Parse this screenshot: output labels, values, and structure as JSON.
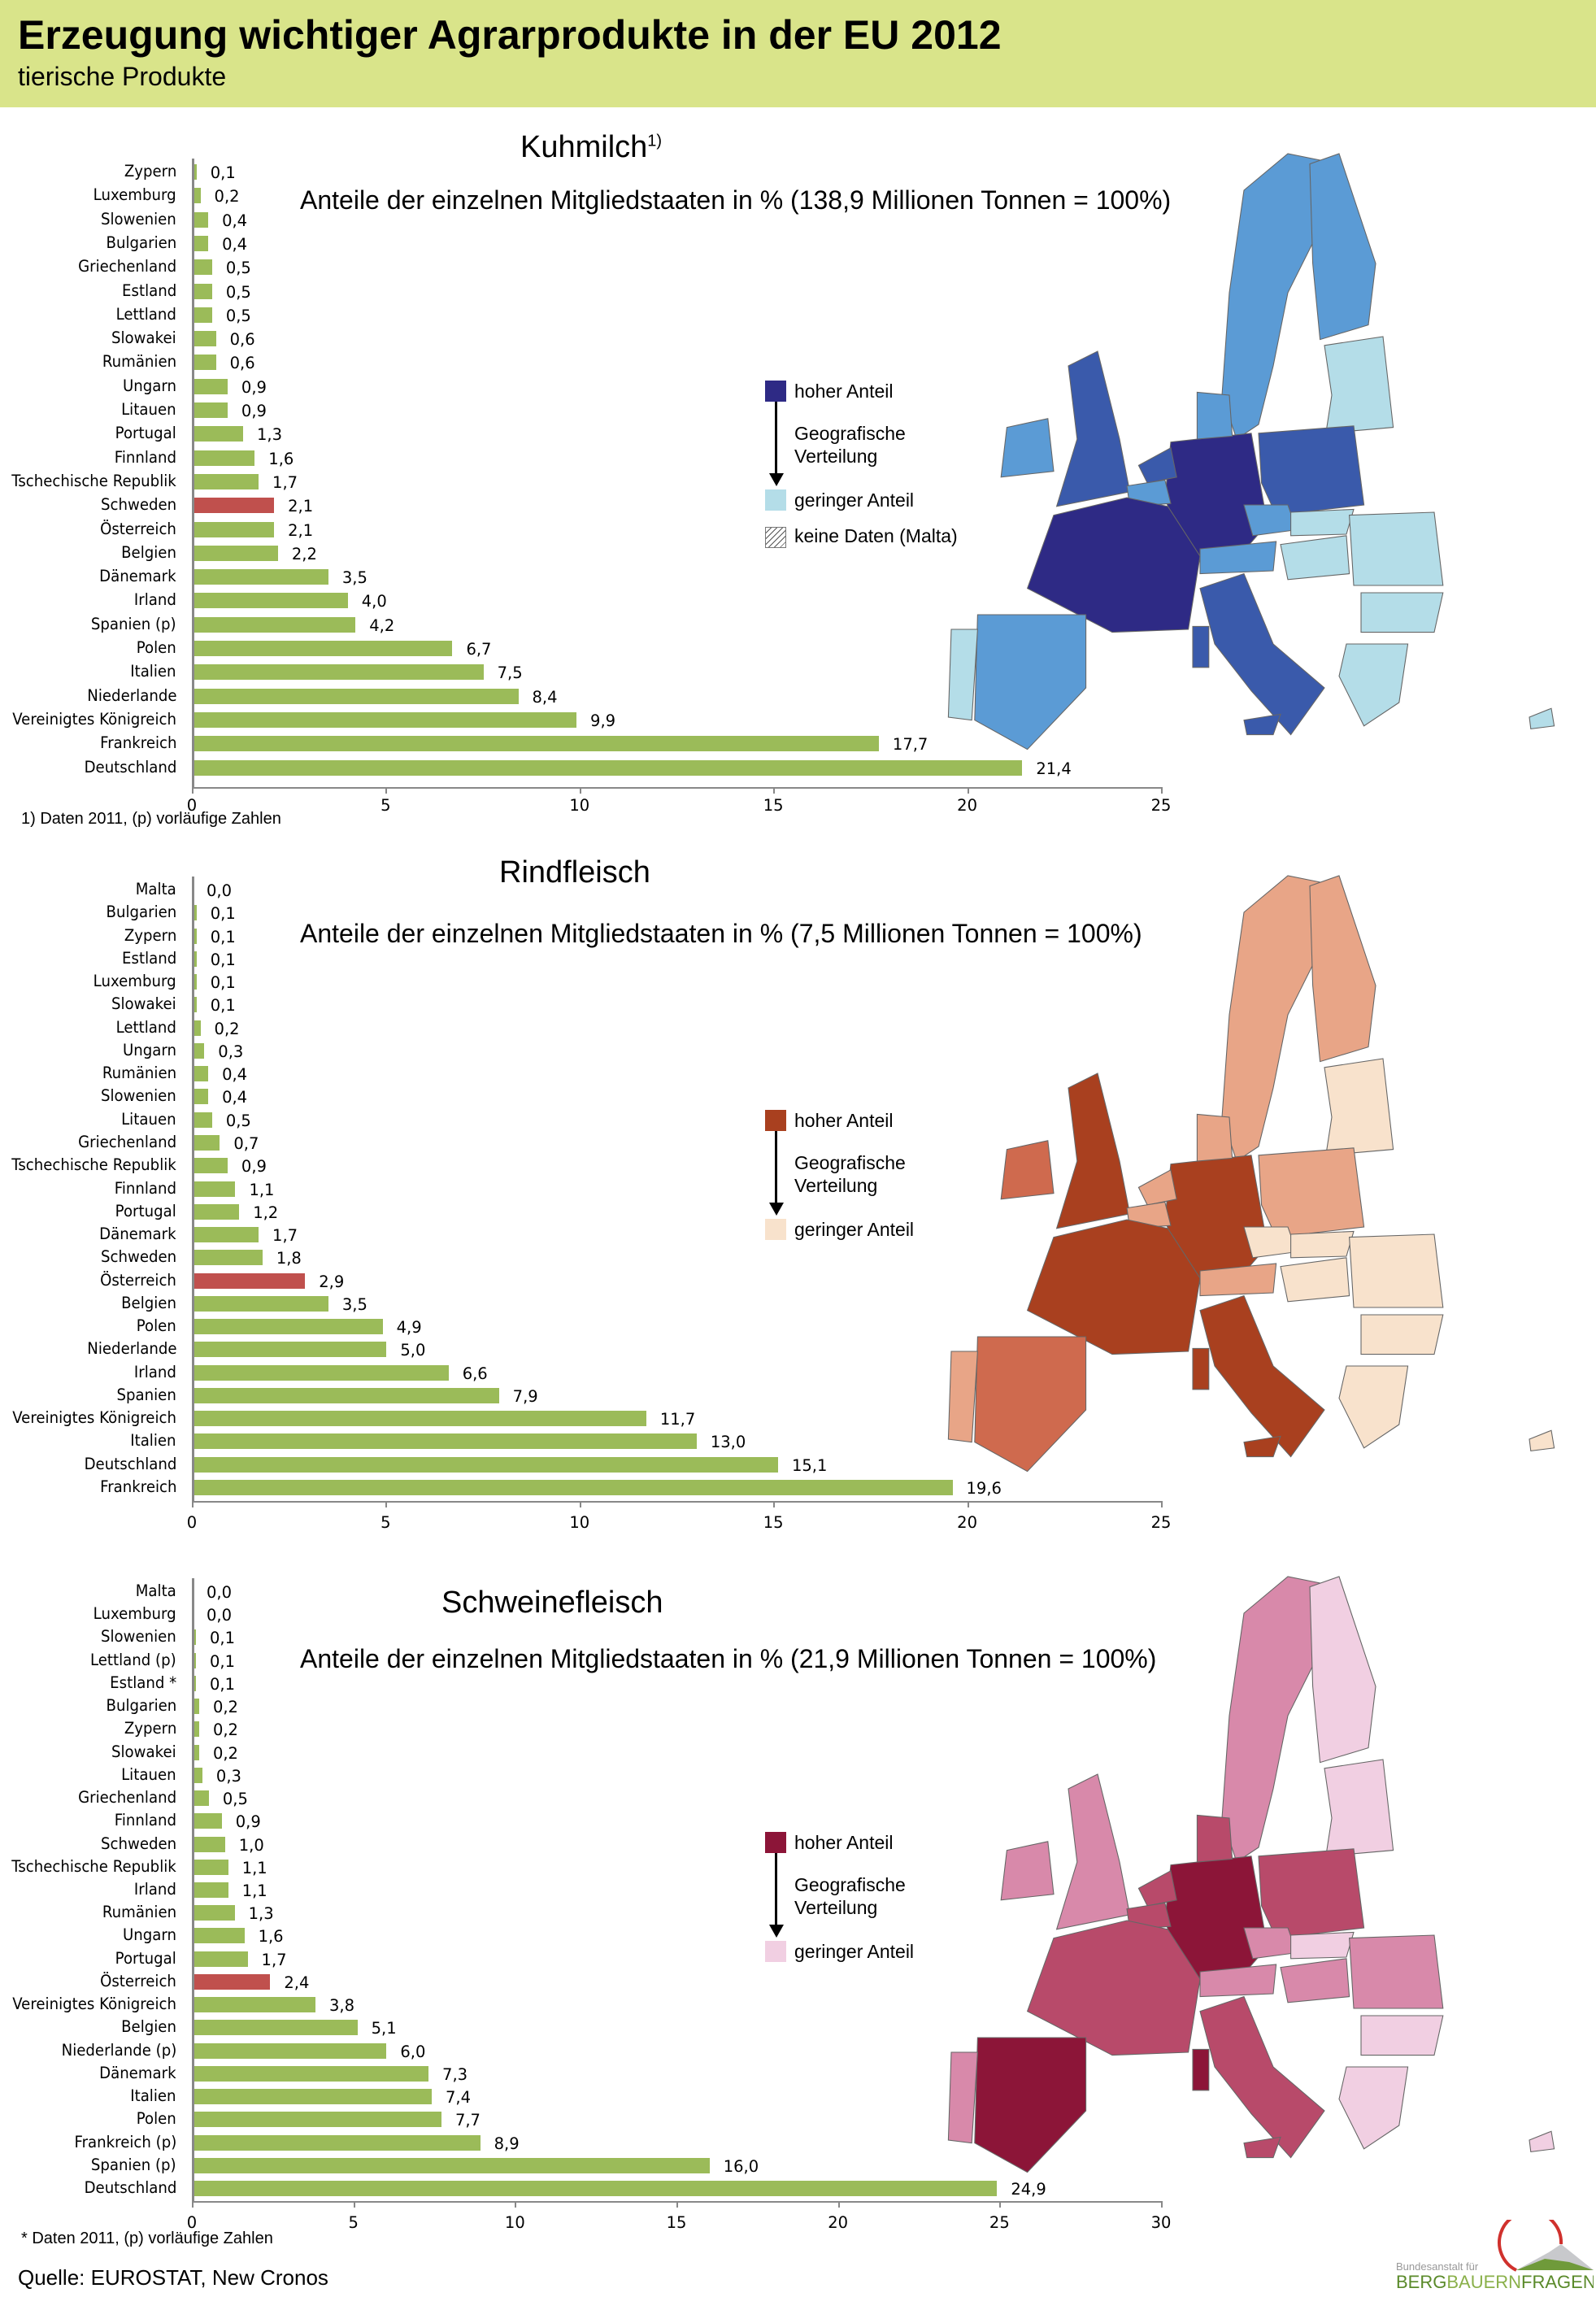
{
  "header": {
    "title": "Erzeugung wichtiger Agrarprodukte in der EU 2012",
    "subtitle": "tierische Produkte"
  },
  "legend_common": {
    "high": "hoher  Anteil",
    "mid1": "Geografische",
    "mid2": "Verteilung",
    "low": "geringer  Anteil",
    "nodata": "keine Daten (Malta)"
  },
  "chart_data": [
    {
      "type": "bar",
      "title": "Kuhmilch",
      "title_sup": "1)",
      "subtitle": "Anteile der einzelnen Mitgliedstaaten in % (138,9 Millionen Tonnen  = 100%)",
      "xlim": [
        0,
        25
      ],
      "ticks": [
        "0",
        "5",
        "10",
        "15",
        "20",
        "25"
      ],
      "footnote": "1) Daten 2011, (p) vorläufige Zahlen",
      "colors": {
        "bar": "#9bbb59",
        "highlight": "#c0504d",
        "high": "#2e2a85",
        "low": "#b4dde8"
      },
      "categories": [
        "Zypern",
        "Luxemburg",
        "Slowenien",
        "Bulgarien",
        "Griechenland",
        "Estland",
        "Lettland",
        "Slowakei",
        "Rumänien",
        "Ungarn",
        "Litauen",
        "Portugal",
        "Finnland",
        "Tschechische Republik",
        "Schweden",
        "Österreich",
        "Belgien",
        "Dänemark",
        "Irland",
        "Spanien (p)",
        "Polen",
        "Italien",
        "Niederlande",
        "Vereinigtes Königreich",
        "Frankreich",
        "Deutschland"
      ],
      "values": [
        0.1,
        0.2,
        0.4,
        0.4,
        0.5,
        0.5,
        0.5,
        0.6,
        0.6,
        0.9,
        0.9,
        1.3,
        1.6,
        1.7,
        2.1,
        2.1,
        2.2,
        3.5,
        4.0,
        4.2,
        6.7,
        7.5,
        8.4,
        9.9,
        17.7,
        21.4
      ],
      "value_labels": [
        "0,1",
        "0,2",
        "0,4",
        "0,4",
        "0,5",
        "0,5",
        "0,5",
        "0,6",
        "0,6",
        "0,9",
        "0,9",
        "1,3",
        "1,6",
        "1,7",
        "2,1",
        "2,1",
        "2,2",
        "3,5",
        "4,0",
        "4,2",
        "6,7",
        "7,5",
        "8,4",
        "9,9",
        "17,7",
        "21,4"
      ],
      "highlight": "Schweden",
      "map_colors": {
        "DE": "#2e2a85",
        "FR": "#2e2a85",
        "UK": "#3a5aab",
        "PL": "#3a5aab",
        "IT": "#3a5aab",
        "NL": "#3a5aab",
        "IE": "#5b9bd5",
        "ES": "#5b9bd5",
        "SE": "#5b9bd5",
        "FI": "#5b9bd5",
        "DK": "#5b9bd5",
        "AT": "#5b9bd5",
        "BE": "#5b9bd5",
        "CZ": "#5b9bd5",
        "PT": "#b4dde8",
        "BALT": "#b4dde8",
        "RO": "#b4dde8",
        "BG": "#b4dde8",
        "GR": "#b4dde8",
        "HU": "#b4dde8",
        "SK": "#b4dde8",
        "CY": "#b4dde8",
        "SAR": "#3a5aab",
        "SIC": "#3a5aab"
      }
    },
    {
      "type": "bar",
      "title": "Rindfleisch",
      "subtitle": "Anteile der einzelnen Mitgliedstaaten in % (7,5 Millionen Tonnen = 100%)",
      "xlim": [
        0,
        25
      ],
      "ticks": [
        "0",
        "5",
        "10",
        "15",
        "20",
        "25"
      ],
      "colors": {
        "bar": "#9bbb59",
        "highlight": "#c0504d",
        "high": "#a9401f",
        "low": "#f8e2cc"
      },
      "categories": [
        "Malta",
        "Bulgarien",
        "Zypern",
        "Estland",
        "Luxemburg",
        "Slowakei",
        "Lettland",
        "Ungarn",
        "Rumänien",
        "Slowenien",
        "Litauen",
        "Griechenland",
        "Tschechische Republik",
        "Finnland",
        "Portugal",
        "Dänemark",
        "Schweden",
        "Österreich",
        "Belgien",
        "Polen",
        "Niederlande",
        "Irland",
        "Spanien",
        "Vereinigtes Königreich",
        "Italien",
        "Deutschland",
        "Frankreich"
      ],
      "values": [
        0.0,
        0.1,
        0.1,
        0.1,
        0.1,
        0.1,
        0.2,
        0.3,
        0.4,
        0.4,
        0.5,
        0.7,
        0.9,
        1.1,
        1.2,
        1.7,
        1.8,
        2.9,
        3.5,
        4.9,
        5.0,
        6.6,
        7.9,
        11.7,
        13.0,
        15.1,
        19.6
      ],
      "value_labels": [
        "0,0",
        "0,1",
        "0,1",
        "0,1",
        "0,1",
        "0,1",
        "0,2",
        "0,3",
        "0,4",
        "0,4",
        "0,5",
        "0,7",
        "0,9",
        "1,1",
        "1,2",
        "1,7",
        "1,8",
        "2,9",
        "3,5",
        "4,9",
        "5,0",
        "6,6",
        "7,9",
        "11,7",
        "13,0",
        "15,1",
        "19,6"
      ],
      "highlight": "Österreich",
      "map_colors": {
        "DE": "#a9401f",
        "FR": "#a9401f",
        "UK": "#a9401f",
        "IT": "#a9401f",
        "IE": "#cf6a4e",
        "ES": "#cf6a4e",
        "PL": "#e8a587",
        "NL": "#e8a587",
        "SE": "#e8a587",
        "FI": "#e8a587",
        "PT": "#e8a587",
        "BE": "#e8a587",
        "DK": "#e8a587",
        "AT": "#e8a587",
        "CZ": "#f8e2cc",
        "BALT": "#f8e2cc",
        "RO": "#f8e2cc",
        "BG": "#f8e2cc",
        "GR": "#f8e2cc",
        "HU": "#f8e2cc",
        "SK": "#f8e2cc",
        "CY": "#f8e2cc",
        "SAR": "#a9401f",
        "SIC": "#a9401f"
      }
    },
    {
      "type": "bar",
      "title": "Schweinefleisch",
      "subtitle": "Anteile der einzelnen Mitgliedstaaten in % (21,9 Millionen Tonnen = 100%)",
      "xlim": [
        0,
        30
      ],
      "ticks": [
        "0",
        "5",
        "10",
        "15",
        "20",
        "25",
        "30"
      ],
      "footnote": "* Daten 2011, (p) vorläufige Zahlen",
      "colors": {
        "bar": "#9bbb59",
        "highlight": "#c0504d",
        "high": "#8c1538",
        "low": "#f1cfe2"
      },
      "categories": [
        "Malta",
        "Luxemburg",
        "Slowenien",
        "Lettland (p)",
        "Estland *",
        "Bulgarien",
        "Zypern",
        "Slowakei",
        "Litauen",
        "Griechenland",
        "Finnland",
        "Schweden",
        "Tschechische Republik",
        "Irland",
        "Rumänien",
        "Ungarn",
        "Portugal",
        "Österreich",
        "Vereinigtes Königreich",
        "Belgien",
        "Niederlande (p)",
        "Dänemark",
        "Italien",
        "Polen",
        "Frankreich (p)",
        "Spanien (p)",
        "Deutschland"
      ],
      "values": [
        0.0,
        0.0,
        0.1,
        0.1,
        0.1,
        0.2,
        0.2,
        0.2,
        0.3,
        0.5,
        0.9,
        1.0,
        1.1,
        1.1,
        1.3,
        1.6,
        1.7,
        2.4,
        3.8,
        5.1,
        6.0,
        7.3,
        7.4,
        7.7,
        8.9,
        16.0,
        24.9
      ],
      "value_labels": [
        "0,0",
        "0,0",
        "0,1",
        "0,1",
        "0,1",
        "0,2",
        "0,2",
        "0,2",
        "0,3",
        "0,5",
        "0,9",
        "1,0",
        "1,1",
        "1,1",
        "1,3",
        "1,6",
        "1,7",
        "2,4",
        "3,8",
        "5,1",
        "6,0",
        "7,3",
        "7,4",
        "7,7",
        "8,9",
        "16,0",
        "24,9"
      ],
      "highlight": "Österreich",
      "map_colors": {
        "DE": "#8c1538",
        "ES": "#8c1538",
        "FR": "#b84a6a",
        "PL": "#b84a6a",
        "IT": "#b84a6a",
        "DK": "#b84a6a",
        "NL": "#b84a6a",
        "BE": "#b84a6a",
        "UK": "#d889aa",
        "IE": "#d889aa",
        "SE": "#d889aa",
        "PT": "#d889aa",
        "RO": "#d889aa",
        "HU": "#d889aa",
        "AT": "#d889aa",
        "CZ": "#d889aa",
        "FI": "#f1cfe2",
        "BALT": "#f1cfe2",
        "BG": "#f1cfe2",
        "GR": "#f1cfe2",
        "SK": "#f1cfe2",
        "CY": "#f1cfe2",
        "SAR": "#8c1538",
        "SIC": "#b84a6a"
      }
    }
  ],
  "source": "Quelle: EUROSTAT, New Cronos",
  "logo": {
    "line1": "Bundesanstalt für",
    "line2a": "BERG",
    "line2b": "BAUERN",
    "line2c": "FRAGEN"
  }
}
